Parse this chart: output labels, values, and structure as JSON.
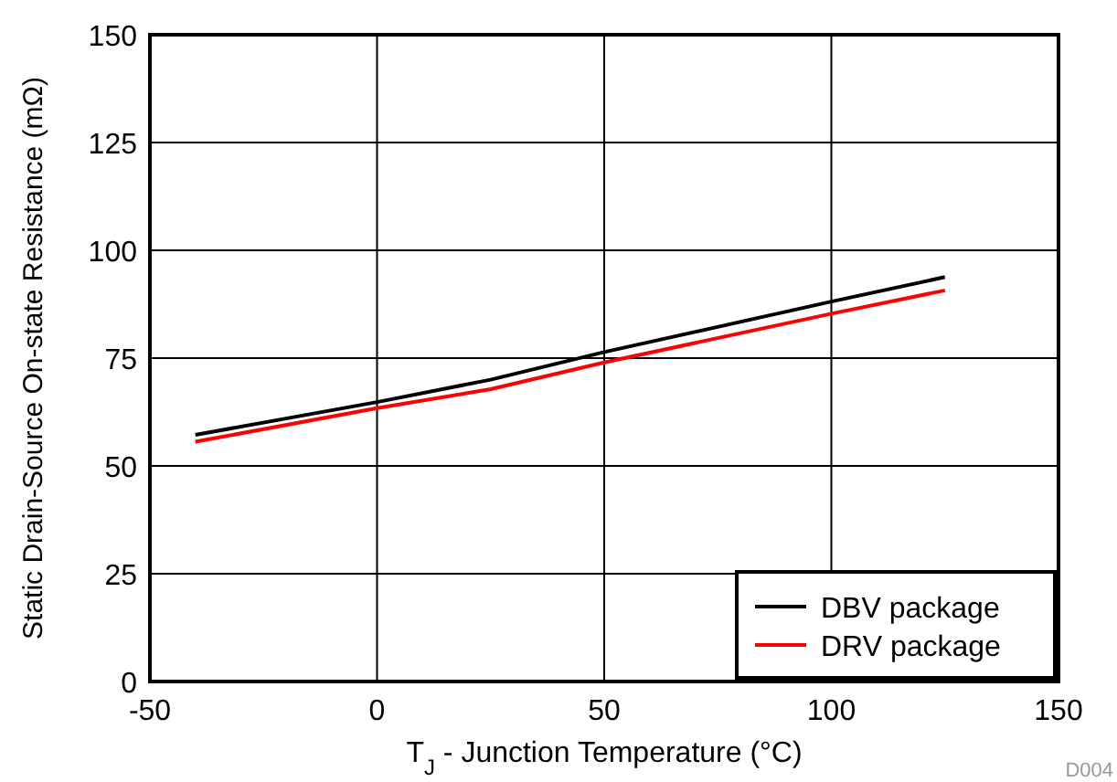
{
  "chart_data": {
    "type": "line",
    "xlabel": "T$_{J}$ - Junction Temperature (°C)",
    "ylabel": "Static Drain-Source On-state Resistance (mΩ)",
    "xlim": [
      -50,
      150
    ],
    "xticks": [
      -50,
      0,
      50,
      100,
      150
    ],
    "ylim": [
      0,
      150
    ],
    "yticks": [
      0,
      25,
      50,
      75,
      100,
      125,
      150
    ],
    "grid": true,
    "legend": "bottom right",
    "line_style": "solid",
    "marker": "none",
    "annotations": [
      "D004"
    ],
    "series": [
      {
        "name": "DBV package",
        "color": "#000000",
        "x": [
          -40,
          0,
          25,
          50,
          100,
          125
        ],
        "values": [
          57.2,
          64.8,
          70,
          76.4,
          88.1,
          93.8
        ]
      },
      {
        "name": "DRV package",
        "color": "#ff0000",
        "x": [
          -40,
          0,
          25,
          50,
          100,
          125
        ],
        "values": [
          55.6,
          63.4,
          67.8,
          74,
          85.3,
          90.7
        ]
      }
    ]
  }
}
